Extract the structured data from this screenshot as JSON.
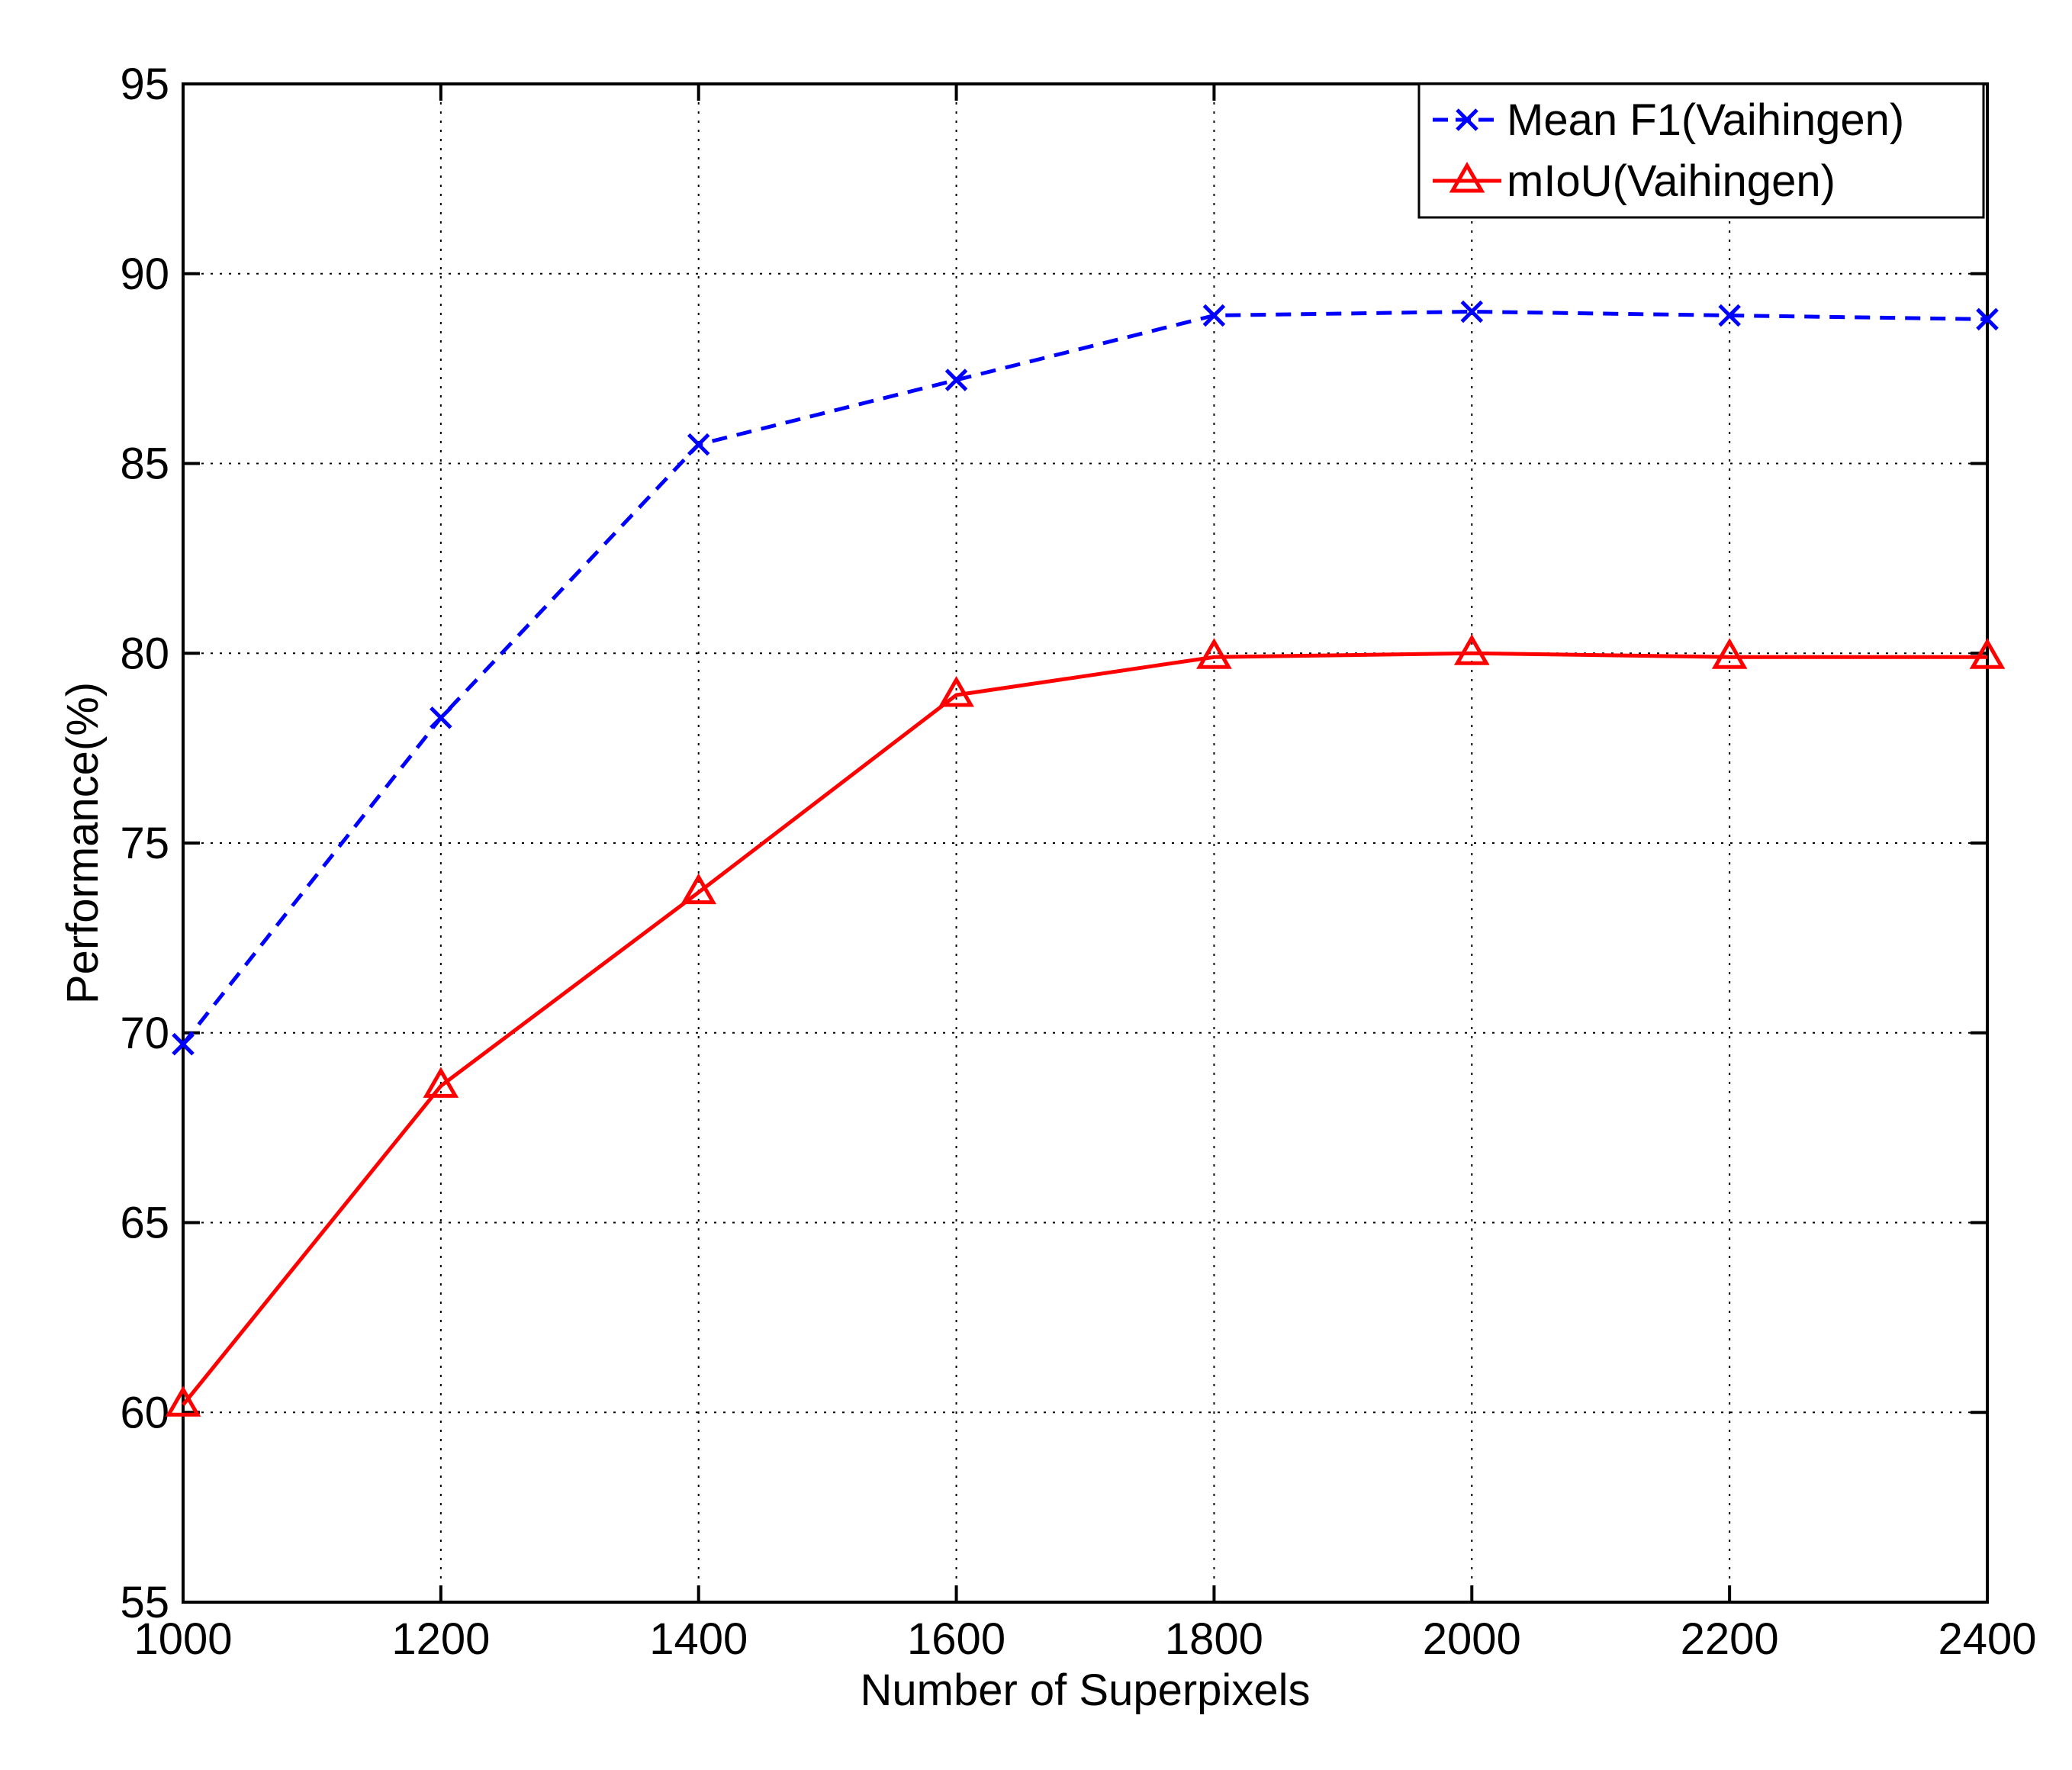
{
  "chart_data": {
    "type": "line",
    "title": "",
    "xlabel": "Number of Superpixels",
    "ylabel": "Performance(%)",
    "xlim": [
      1000,
      2400
    ],
    "ylim": [
      55,
      95
    ],
    "xticks": [
      1000,
      1200,
      1400,
      1600,
      1800,
      2000,
      2200,
      2400
    ],
    "yticks": [
      55,
      60,
      65,
      70,
      75,
      80,
      85,
      90,
      95
    ],
    "grid": true,
    "legend_position": "top-right",
    "x": [
      1000,
      1200,
      1400,
      1600,
      1800,
      2000,
      2200,
      2400
    ],
    "series": [
      {
        "name": "Mean F1(Vaihingen)",
        "color": "#0000ff",
        "line_style": "dashed",
        "marker": "x",
        "values": [
          69.7,
          78.3,
          85.5,
          87.2,
          88.9,
          89.0,
          88.9,
          88.8
        ]
      },
      {
        "name": "mIoU(Vaihingen)",
        "color": "#ff0000",
        "line_style": "solid",
        "marker": "triangle",
        "values": [
          60.2,
          68.6,
          73.7,
          78.9,
          79.9,
          80.0,
          79.9,
          79.9
        ]
      }
    ]
  }
}
